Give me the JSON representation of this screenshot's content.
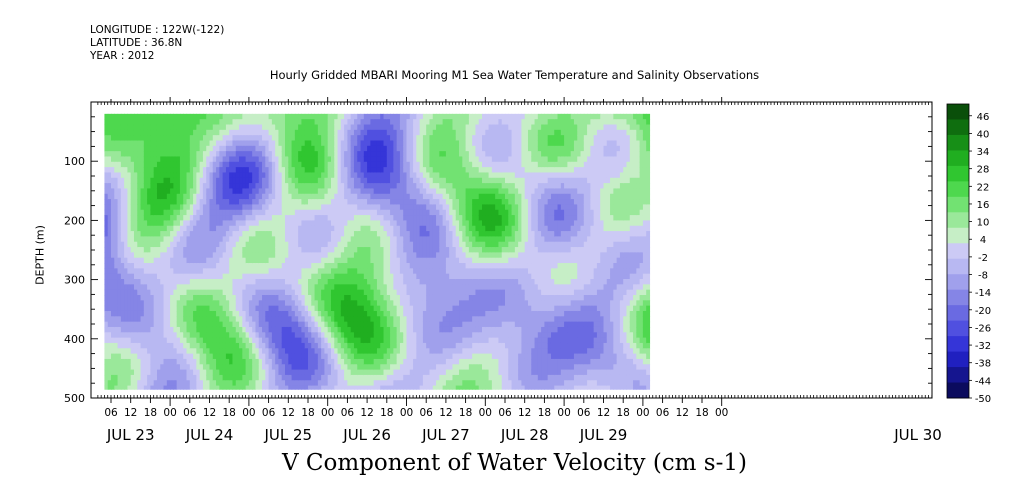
{
  "meta": {
    "longitude": "LONGITUDE : 122W(-122)",
    "latitude": "LATITUDE : 36.8N",
    "year": "YEAR : 2012"
  },
  "title": "Hourly Gridded MBARI Mooring M1 Sea Water Temperature and Salinity Observations",
  "colors": {
    "scale": [
      "#0b0b5e",
      "#15158f",
      "#2020c0",
      "#3535d8",
      "#5050e0",
      "#6a6ae2",
      "#8585e6",
      "#a0a0ec",
      "#b8b8f2",
      "#cccaf5",
      "#c6eec6",
      "#9ae89a",
      "#72e272",
      "#4ed84e",
      "#30c630",
      "#20ae20",
      "#178f17",
      "#0f6e0f",
      "#0a4f0a"
    ]
  },
  "chart_data": {
    "type": "heatmap",
    "title": "Hourly Gridded MBARI Mooring M1 Sea Water Temperature and Salinity Observations",
    "xlabel": "V Component of Water Velocity (cm s-1)",
    "ylabel": "DEPTH (m)",
    "y_ticks": [
      "100",
      "200",
      "300",
      "400",
      "500"
    ],
    "y_tick_values": [
      100,
      200,
      300,
      400,
      500
    ],
    "ylim": [
      500,
      0
    ],
    "x_hour_ticks": [
      "06",
      "12",
      "18",
      "00",
      "06",
      "12",
      "18",
      "00",
      "06",
      "12",
      "18",
      "00",
      "06",
      "12",
      "18",
      "00",
      "06",
      "12",
      "18",
      "00",
      "06",
      "12",
      "18",
      "00",
      "06",
      "12",
      "18",
      "00",
      "06",
      "12",
      "18",
      "00"
    ],
    "x_day_labels": [
      "JUL 23",
      "JUL 24",
      "JUL 25",
      "JUL 26",
      "JUL 27",
      "JUL 28",
      "JUL 29",
      "JUL 30"
    ],
    "colorbar_labels": [
      "46",
      "40",
      "34",
      "28",
      "22",
      "16",
      "10",
      "4",
      "-2",
      "-8",
      "-14",
      "-20",
      "-26",
      "-32",
      "-38",
      "-44",
      "-50"
    ],
    "colorbar_values": [
      46,
      40,
      34,
      28,
      22,
      16,
      10,
      4,
      -2,
      -8,
      -14,
      -20,
      -26,
      -32,
      -38,
      -44,
      -50
    ],
    "value_range": [
      -50,
      50
    ],
    "time_range": [
      "2012-07-23 04:00",
      "2012-07-30 02:00"
    ],
    "depth_range": [
      20,
      485
    ],
    "summary": "Alternating bands of positive (green, northward) and negative (blue, southward) velocity; strongest positive flow near surface on JUL 24-26, strongest negative flow (about -30) at depth around JUL 26 and JUL 29."
  }
}
